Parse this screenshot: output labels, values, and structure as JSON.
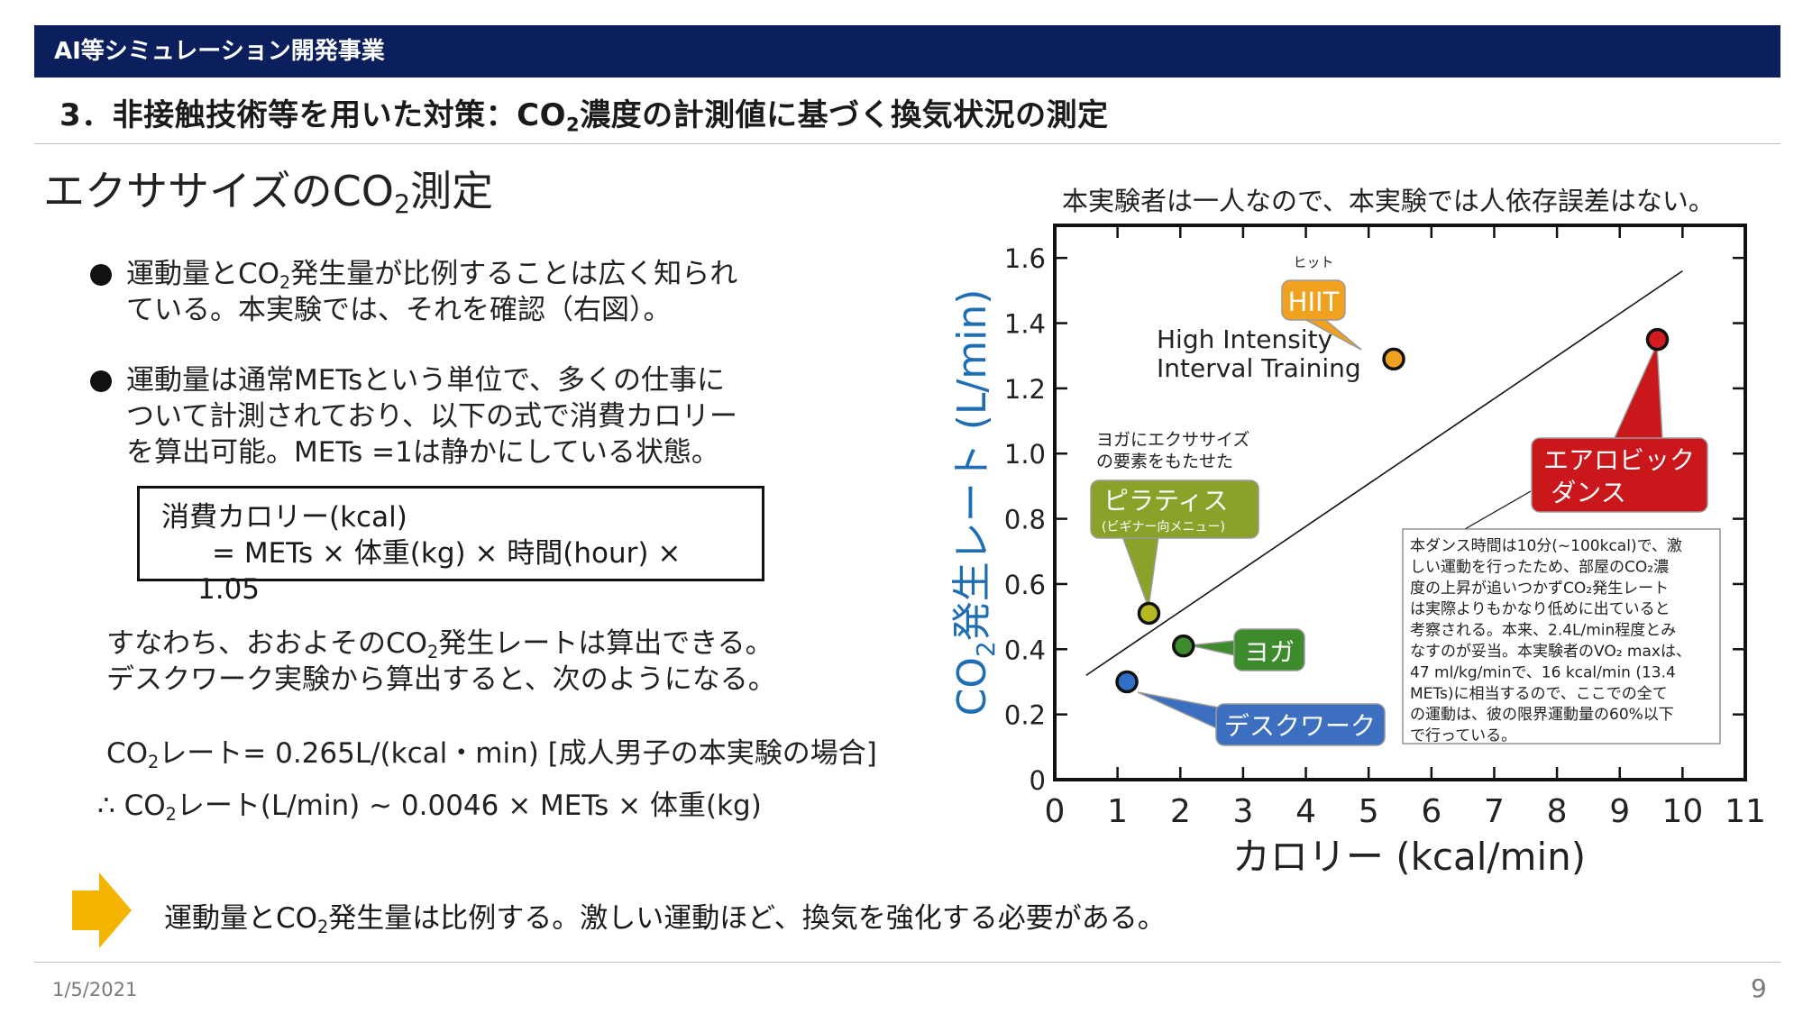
{
  "header": {
    "org": "AI等シミュレーション開発事業"
  },
  "slide_title": {
    "pre": "3．非接触技術等を用いた対策：CO",
    "sub": "2",
    "post": "濃度の計測値に基づく換気状況の測定"
  },
  "section_heading": {
    "pre": "エクササイズのCO",
    "sub": "2",
    "post": "測定"
  },
  "bullets": [
    {
      "l1_pre": "運動量とCO",
      "l1_sub": "2",
      "l1_post": "発生量が比例することは広く知られ",
      "l2": "ている。本実験では、それを確認（右図）。"
    },
    {
      "l1": "運動量は通常METsという単位で、多くの仕事に",
      "l2": "ついて計測されており、以下の式で消費カロリー",
      "l3": "を算出可能。METs =1は静かにしている状態。"
    }
  ],
  "formula": {
    "line1": "消費カロリー(kcal)",
    "line2": "= METs × 体重(kg) × 時間(hour) ×",
    "line3": "1.05"
  },
  "para1": {
    "l1_pre": "すなわち、おおよそのCO",
    "l1_sub": "2",
    "l1_post": "発生レートは算出できる。",
    "l2": "デスクワーク実験から算出すると、次のようになる。"
  },
  "rate_line": {
    "pre": "CO",
    "sub": "2",
    "post": "レート= 0.265L/(kcal・min) [成人男子の本実験の場合]"
  },
  "approx_line": {
    "pre": "∴ CO",
    "sub": "2",
    "post": "レート(L/min) ~ 0.0046 × METs × 体重(kg)"
  },
  "conclusion": {
    "pre": "運動量とCO",
    "sub": "2",
    "post": "発生量は比例する。激しい運動ほど、換気を強化する必要がある。"
  },
  "footer": {
    "date": "1/5/2021",
    "page": "9"
  },
  "colors": {
    "header_bg": "#0a1f5c",
    "axis_label": "#1f6db3",
    "hiit": "#f0a21e",
    "aerobic": "#c9171b",
    "pilates": "#8aa12a",
    "yoga": "#3d8b2c",
    "desk": "#3d6fc0",
    "arrow": "#f5b400"
  },
  "icons": {
    "arrow": "right-arrow-icon",
    "bullet": "bullet-dot-icon"
  },
  "chart_caption": "本実験者は一人なので、本実験では人依存誤差はない。",
  "chart_data": {
    "type": "scatter",
    "xlabel": "カロリー (kcal/min)",
    "ylabel": {
      "pre": "CO",
      "sub": "2",
      "post": "発生レート (L/min)"
    },
    "xlim": [
      0,
      11
    ],
    "ylim": [
      0,
      1.7
    ],
    "xticks": [
      "0",
      "1",
      "2",
      "3",
      "4",
      "5",
      "6",
      "7",
      "8",
      "9",
      "10",
      "11"
    ],
    "yticks": [
      "0",
      "0.2",
      "0.4",
      "0.6",
      "0.8",
      "1.0",
      "1.2",
      "1.4",
      "1.6"
    ],
    "grid": false,
    "points": [
      {
        "name": "デスクワーク",
        "x": 1.15,
        "y": 0.3,
        "color": "#2f6fc6"
      },
      {
        "name": "ピラティス",
        "x": 1.5,
        "y": 0.51,
        "color": "#b5b81f"
      },
      {
        "name": "ヨガ",
        "x": 2.05,
        "y": 0.41,
        "color": "#3d8b2c"
      },
      {
        "name": "HIIT",
        "x": 5.4,
        "y": 1.29,
        "color": "#f0a21e"
      },
      {
        "name": "エアロビックダンス",
        "x": 9.6,
        "y": 1.35,
        "color": "#d21c20"
      }
    ],
    "trend_line": {
      "x": [
        0.5,
        10.0
      ],
      "y": [
        0.32,
        1.56
      ]
    },
    "annotations": {
      "hiit_ruby": "ヒット",
      "hiit_label": "HIIT",
      "hiit_desc_1": "High Intensity",
      "hiit_desc_2": "Interval Training",
      "yoga_note_1": "ヨガにエクササイズ",
      "yoga_note_2": "の要素をもたせた",
      "pilates_label": "ピラティス",
      "pilates_sub": "(ビギナー向メニュー)",
      "yoga_label": "ヨガ",
      "desk_label": "デスクワーク",
      "aerobic_label_1": "エアロビック",
      "aerobic_label_2": "ダンス",
      "note_lines": [
        "本ダンス時間は10分(~100kcal)で、激",
        "しい運動を行ったため、部屋のCO₂濃",
        "度の上昇が追いつかずCO₂発生レート",
        "は実際よりもかなり低めに出ていると",
        "考察される。本来、2.4L/min程度とみ",
        "なすのが妥当。本実験者のVO₂ maxは、",
        "47 ml/kg/minで、16 kcal/min (13.4",
        "METs)に相当するので、ここでの全て",
        "の運動は、彼の限界運動量の60%以下",
        "で行っている。"
      ]
    }
  }
}
